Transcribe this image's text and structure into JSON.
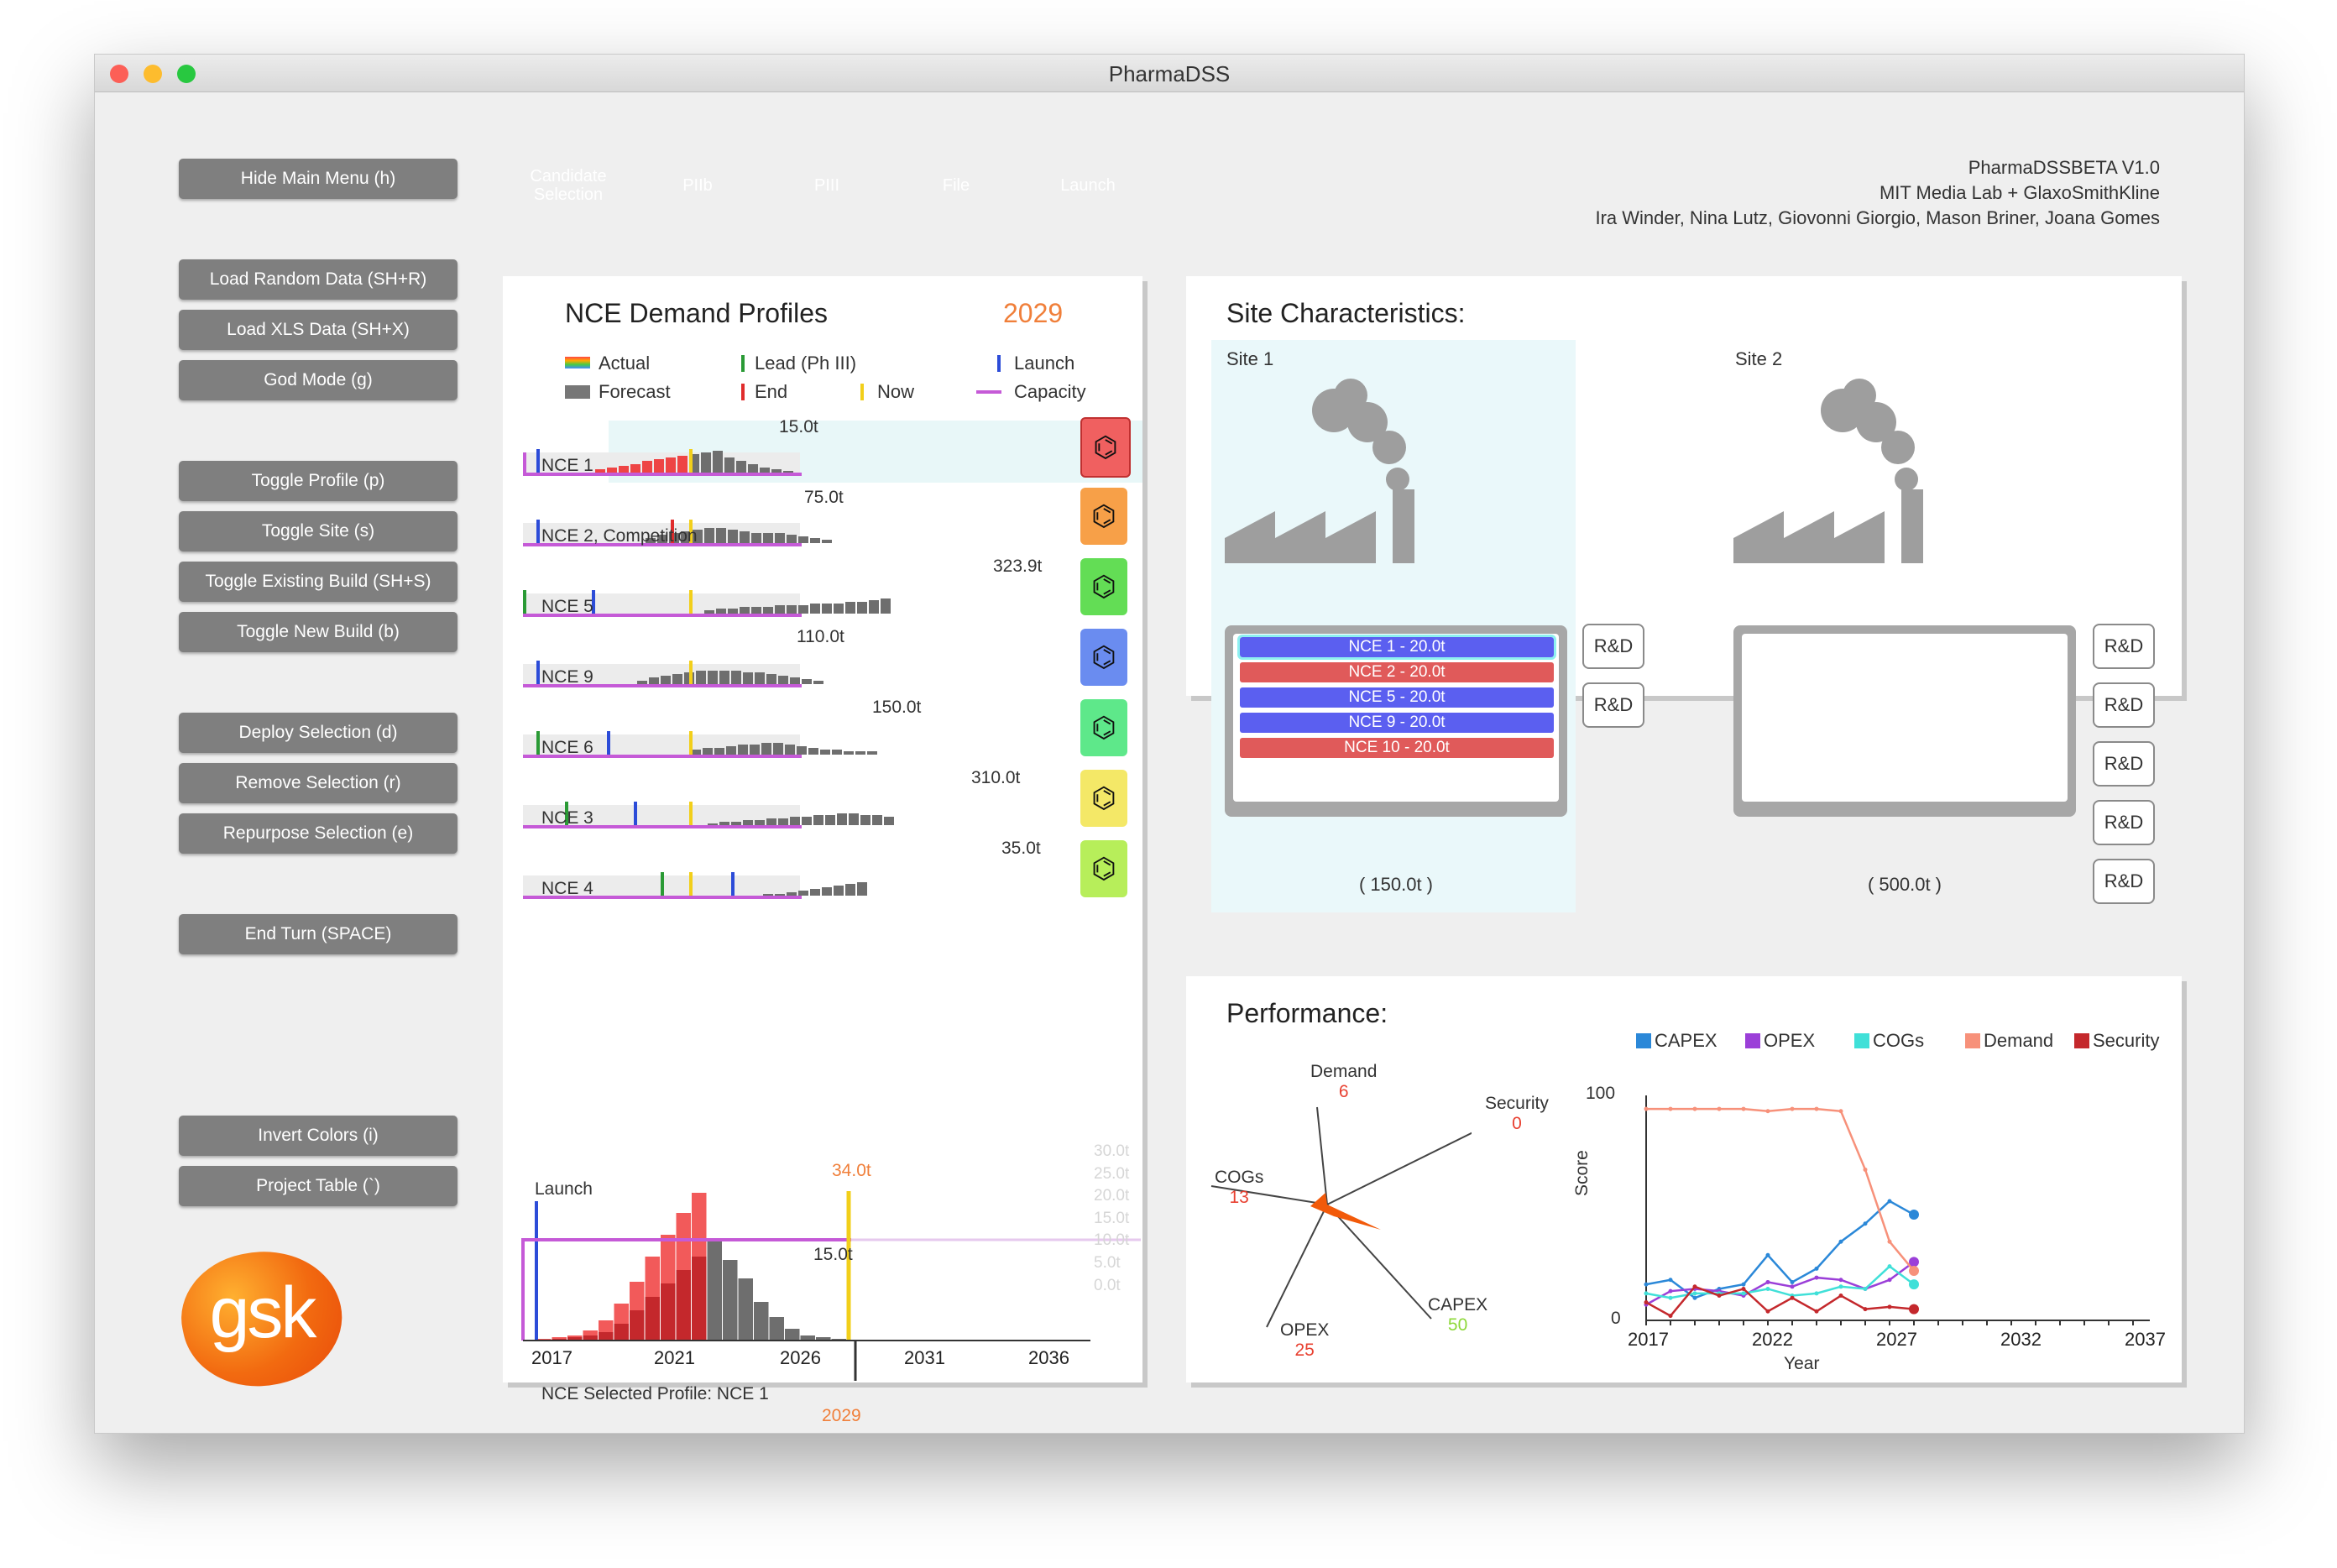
{
  "window": {
    "title": "PharmaDSS"
  },
  "menu": {
    "hide": "Hide Main Menu (h)",
    "load_random": "Load Random Data (SH+R)",
    "load_xls": "Load XLS Data (SH+X)",
    "god_mode": "God Mode (g)",
    "toggle_profile": "Toggle Profile (p)",
    "toggle_site": "Toggle Site (s)",
    "toggle_existing": "Toggle Existing Build (SH+S)",
    "toggle_new": "Toggle New Build (b)",
    "deploy": "Deploy Selection (d)",
    "remove": "Remove Selection (r)",
    "repurpose": "Repurpose Selection (e)",
    "end_turn": "End Turn (SPACE)",
    "invert": "Invert Colors (i)",
    "project_table": "Project Table (`)"
  },
  "logo": {
    "text": "gsk"
  },
  "stages": [
    {
      "label": "Candidate Selection",
      "color": "#a9a9a9"
    },
    {
      "label": "PIIb",
      "color": "#a9a9a9"
    },
    {
      "label": "PIII",
      "color": "#39a83a"
    },
    {
      "label": "File",
      "color": "#a9a9a9"
    },
    {
      "label": "Launch",
      "color": "#3d5fd9"
    }
  ],
  "credits": {
    "line1": "PharmaDSSBETA V1.0",
    "line2": "MIT Media Lab + GlaxoSmithKline",
    "line3": "Ira Winder, Nina Lutz, Giovonni Giorgio, Mason Briner, Joana Gomes"
  },
  "demand": {
    "title": "NCE Demand Profiles",
    "year": "2029",
    "legend": {
      "actual": "Actual",
      "forecast": "Forecast",
      "lead": "Lead (Ph III)",
      "end": "End",
      "launch": "Launch",
      "now": "Now",
      "capacity": "Capacity"
    },
    "profiles": [
      {
        "name": "NCE 1",
        "peak": "15.0t",
        "color": "#f06060"
      },
      {
        "name": "NCE 2, Competition",
        "peak": "75.0t",
        "color": "#f7a048"
      },
      {
        "name": "NCE 5",
        "peak": "323.9t",
        "color": "#63dd55"
      },
      {
        "name": "NCE 9",
        "peak": "110.0t",
        "color": "#6a8cf0"
      },
      {
        "name": "NCE 6",
        "peak": "150.0t",
        "color": "#5ee88a"
      },
      {
        "name": "NCE 3",
        "peak": "310.0t",
        "color": "#f4e867"
      },
      {
        "name": "NCE 4",
        "peak": "35.0t",
        "color": "#b7ee5a"
      }
    ],
    "detail": {
      "launch_label": "Launch",
      "peak_label": "34.0t",
      "capacity_label": "15.0t",
      "year_label": "2029",
      "selected": "NCE Selected Profile: NCE 1",
      "x_ticks": [
        "2017",
        "2021",
        "2026",
        "2031",
        "2036"
      ],
      "y_ticks": [
        "30.0t",
        "25.0t",
        "20.0t",
        "15.0t",
        "10.0t",
        "5.0t",
        "0.0t"
      ]
    }
  },
  "sites": {
    "title": "Site Characteristics:",
    "site1": {
      "name": "Site 1",
      "capacity": "( 150.0t )"
    },
    "site2": {
      "name": "Site 2",
      "capacity": "( 500.0t )"
    },
    "rd_label": "R&D",
    "assignments": [
      {
        "label": "NCE 1 - 20.0t",
        "color": "#5b5ff0"
      },
      {
        "label": "NCE 2 - 20.0t",
        "color": "#e05a5a"
      },
      {
        "label": "NCE 5 - 20.0t",
        "color": "#5b5ff0"
      },
      {
        "label": "NCE 9 - 20.0t",
        "color": "#5b5ff0"
      },
      {
        "label": "NCE 10 - 20.0t",
        "color": "#e05a5a"
      }
    ]
  },
  "performance": {
    "title": "Performance:",
    "radar": [
      {
        "axis": "Demand",
        "value": "6"
      },
      {
        "axis": "Security",
        "value": "0"
      },
      {
        "axis": "CAPEX",
        "value": "50"
      },
      {
        "axis": "OPEX",
        "value": "25"
      },
      {
        "axis": "COGs",
        "value": "13"
      }
    ],
    "legend": [
      {
        "name": "CAPEX",
        "color": "#2b88d8"
      },
      {
        "name": "OPEX",
        "color": "#9b3fd8"
      },
      {
        "name": "COGs",
        "color": "#40e0d8"
      },
      {
        "name": "Demand",
        "color": "#f7917a"
      },
      {
        "name": "Security",
        "color": "#c4282c"
      }
    ],
    "y_top": "100",
    "y_bottom": "0",
    "ylabel": "Score",
    "xlabel": "Year",
    "x_ticks": [
      "2017",
      "2022",
      "2027",
      "2032",
      "2037"
    ]
  },
  "chart_data": {
    "type": "line",
    "title": "",
    "xlabel": "Year",
    "ylabel": "Score",
    "ylim": [
      0,
      100
    ],
    "xlim": [
      2017,
      2037
    ],
    "x": [
      2017,
      2018,
      2019,
      2020,
      2021,
      2022,
      2023,
      2024,
      2025,
      2026,
      2027,
      2028
    ],
    "series": [
      {
        "name": "CAPEX",
        "values": [
          16,
          18,
          10,
          14,
          16,
          29,
          17,
          23,
          35,
          43,
          53,
          47
        ]
      },
      {
        "name": "OPEX",
        "values": [
          7,
          13,
          14,
          13,
          11,
          17,
          15,
          19,
          18,
          14,
          18,
          26
        ]
      },
      {
        "name": "COGs",
        "values": [
          12,
          10,
          12,
          12,
          12,
          14,
          11,
          12,
          15,
          14,
          24,
          16
        ]
      },
      {
        "name": "Demand",
        "values": [
          94,
          94,
          94,
          94,
          94,
          93,
          94,
          94,
          93,
          67,
          35,
          22
        ]
      },
      {
        "name": "Security",
        "values": [
          8,
          2,
          15,
          11,
          14,
          4,
          10,
          4,
          11,
          5,
          6,
          5
        ]
      }
    ]
  }
}
